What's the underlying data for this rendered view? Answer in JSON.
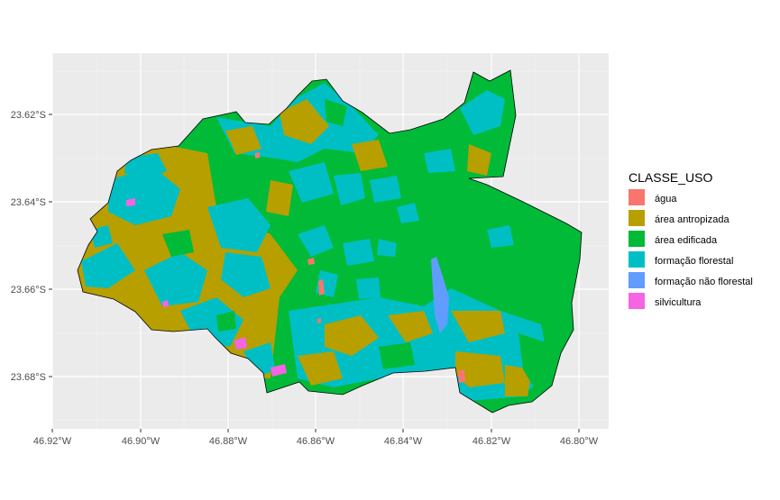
{
  "chart_data": {
    "type": "map",
    "x_ticks": [
      "46.92°W",
      "46.90°W",
      "46.88°W",
      "46.86°W",
      "46.84°W",
      "46.82°W",
      "46.80°W"
    ],
    "y_ticks": [
      "23.62°S",
      "23.64°S",
      "23.66°S",
      "23.68°S"
    ],
    "grid": true,
    "legend_position": "right",
    "legend": {
      "title": "CLASSE_USO",
      "items": [
        {
          "label": "água",
          "color": "#F8766D"
        },
        {
          "label": "área antropizada",
          "color": "#B79F00"
        },
        {
          "label": "área edificada",
          "color": "#00BA38"
        },
        {
          "label": "formação florestal",
          "color": "#00BFC4"
        },
        {
          "label": "formação não florestal",
          "color": "#619CFF"
        },
        {
          "label": "silvicultura",
          "color": "#F564E3"
        }
      ]
    }
  }
}
